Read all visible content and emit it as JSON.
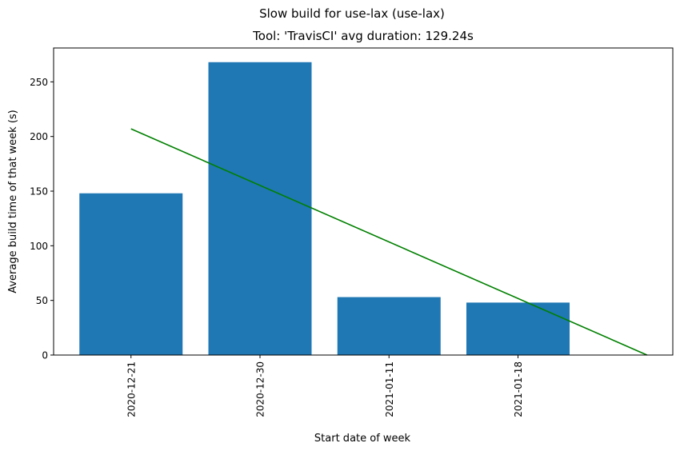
{
  "chart_data": {
    "type": "bar",
    "suptitle": "Slow build for use-lax (use-lax)",
    "title": "Tool: 'TravisCI' avg duration: 129.24s",
    "xlabel": "Start date of week",
    "ylabel": "Average build time of that week (s)",
    "categories": [
      "2020-12-21",
      "2020-12-30",
      "2021-01-11",
      "2021-01-18"
    ],
    "values": [
      148,
      268,
      53,
      48
    ],
    "bar_color": "#1f77b4",
    "trend_line": {
      "color": "#008000",
      "x": [
        0,
        4
      ],
      "y": [
        207,
        0
      ]
    },
    "xlim": [
      -0.6,
      4.2
    ],
    "ylim": [
      0,
      281
    ],
    "yticks": [
      0,
      50,
      100,
      150,
      200,
      250
    ],
    "grid": false
  }
}
